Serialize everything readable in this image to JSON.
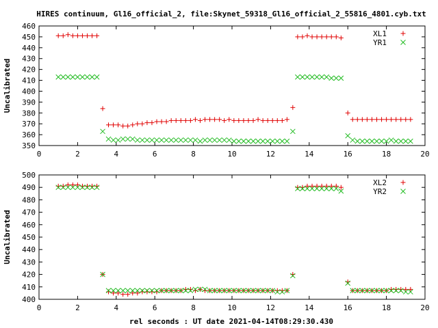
{
  "title": "HIRES continuum, Gl16_official_2, file:Skynet_59318_Gl16_official_2_55816_4801.cyb.txt",
  "xlabel": "rel seconds : UT date 2021-04-14T08:29:30.430",
  "colors": {
    "red": "#e00000",
    "green": "#22bb22",
    "frame": "#000000"
  },
  "chart_data": [
    {
      "type": "scatter",
      "title": "HIRES continuum, Gl16_official_2, file:Skynet_59318_Gl16_official_2_55816_4801.cyb.txt",
      "xlabel": "",
      "ylabel": "Uncalibrated",
      "xlim": [
        0,
        20
      ],
      "ylim": [
        350,
        460
      ],
      "xticks": [
        "0",
        "2",
        "4",
        "6",
        "8",
        "10",
        "12",
        "14",
        "16",
        "18",
        "20"
      ],
      "yticks": [
        "350",
        "360",
        "370",
        "380",
        "390",
        "400",
        "410",
        "420",
        "430",
        "440",
        "450",
        "460"
      ],
      "grid": false,
      "legend_position": "top-right",
      "series": [
        {
          "name": "XL1",
          "marker": "plus",
          "color": "#e00000",
          "x": [
            1.0,
            1.25,
            1.5,
            1.75,
            2.0,
            2.25,
            2.5,
            2.75,
            3.0,
            3.3,
            3.6,
            3.85,
            4.1,
            4.35,
            4.6,
            4.85,
            5.1,
            5.35,
            5.6,
            5.85,
            6.1,
            6.35,
            6.6,
            6.85,
            7.1,
            7.35,
            7.6,
            7.85,
            8.1,
            8.35,
            8.6,
            8.85,
            9.1,
            9.35,
            9.6,
            9.85,
            10.1,
            10.35,
            10.6,
            10.85,
            11.1,
            11.35,
            11.6,
            11.85,
            12.1,
            12.35,
            12.6,
            12.85,
            13.15,
            13.4,
            13.65,
            13.9,
            14.15,
            14.4,
            14.65,
            14.9,
            15.15,
            15.4,
            15.65,
            16.0,
            16.25,
            16.5,
            16.75,
            17.0,
            17.25,
            17.5,
            17.75,
            18.0,
            18.25,
            18.5,
            18.75,
            19.0,
            19.25
          ],
          "y": [
            451,
            451,
            452,
            451,
            451,
            451,
            451,
            451,
            451,
            384,
            369,
            369,
            369,
            368,
            368,
            369,
            370,
            370,
            371,
            371,
            372,
            372,
            372,
            373,
            373,
            373,
            373,
            373,
            374,
            373,
            374,
            374,
            374,
            374,
            373,
            374,
            373,
            373,
            373,
            373,
            373,
            374,
            373,
            373,
            373,
            373,
            373,
            374,
            385,
            450,
            450,
            451,
            450,
            450,
            450,
            450,
            450,
            450,
            449,
            380,
            374,
            374,
            374,
            374,
            374,
            374,
            374,
            374,
            374,
            374,
            374,
            374,
            374
          ]
        },
        {
          "name": "YR1",
          "marker": "cross",
          "color": "#22bb22",
          "x": [
            1.0,
            1.25,
            1.5,
            1.75,
            2.0,
            2.25,
            2.5,
            2.75,
            3.0,
            3.3,
            3.6,
            3.85,
            4.1,
            4.35,
            4.6,
            4.85,
            5.1,
            5.35,
            5.6,
            5.85,
            6.1,
            6.35,
            6.6,
            6.85,
            7.1,
            7.35,
            7.6,
            7.85,
            8.1,
            8.35,
            8.6,
            8.85,
            9.1,
            9.35,
            9.6,
            9.85,
            10.1,
            10.35,
            10.6,
            10.85,
            11.1,
            11.35,
            11.6,
            11.85,
            12.1,
            12.35,
            12.6,
            12.85,
            13.15,
            13.4,
            13.65,
            13.9,
            14.15,
            14.4,
            14.65,
            14.9,
            15.15,
            15.4,
            15.65,
            16.0,
            16.25,
            16.5,
            16.75,
            17.0,
            17.25,
            17.5,
            17.75,
            18.0,
            18.25,
            18.5,
            18.75,
            19.0,
            19.25
          ],
          "y": [
            413,
            413,
            413,
            413,
            413,
            413,
            413,
            413,
            413,
            363,
            356,
            355,
            355,
            356,
            356,
            356,
            355,
            355,
            355,
            355,
            355,
            355,
            355,
            355,
            355,
            355,
            355,
            355,
            355,
            354,
            355,
            355,
            355,
            355,
            355,
            355,
            354,
            354,
            354,
            354,
            354,
            354,
            354,
            354,
            354,
            354,
            354,
            354,
            363,
            413,
            413,
            413,
            413,
            413,
            413,
            413,
            412,
            412,
            412,
            359,
            355,
            354,
            354,
            354,
            354,
            354,
            354,
            354,
            355,
            354,
            354,
            354,
            354
          ]
        }
      ]
    },
    {
      "type": "scatter",
      "title": "",
      "xlabel": "rel seconds : UT date 2021-04-14T08:29:30.430",
      "ylabel": "Uncalibrated",
      "xlim": [
        0,
        20
      ],
      "ylim": [
        400,
        500
      ],
      "xticks": [
        "0",
        "2",
        "4",
        "6",
        "8",
        "10",
        "12",
        "14",
        "16",
        "18",
        "20"
      ],
      "yticks": [
        "400",
        "410",
        "420",
        "430",
        "440",
        "450",
        "460",
        "470",
        "480",
        "490",
        "500"
      ],
      "grid": false,
      "legend_position": "top-right",
      "series": [
        {
          "name": "XL2",
          "marker": "plus",
          "color": "#e00000",
          "x": [
            1.0,
            1.25,
            1.5,
            1.75,
            2.0,
            2.25,
            2.5,
            2.75,
            3.0,
            3.3,
            3.6,
            3.85,
            4.1,
            4.35,
            4.6,
            4.85,
            5.1,
            5.35,
            5.6,
            5.85,
            6.1,
            6.35,
            6.6,
            6.85,
            7.1,
            7.35,
            7.6,
            7.85,
            8.1,
            8.35,
            8.6,
            8.85,
            9.1,
            9.35,
            9.6,
            9.85,
            10.1,
            10.35,
            10.6,
            10.85,
            11.1,
            11.35,
            11.6,
            11.85,
            12.1,
            12.35,
            12.6,
            12.85,
            13.15,
            13.4,
            13.65,
            13.9,
            14.15,
            14.4,
            14.65,
            14.9,
            15.15,
            15.4,
            15.65,
            16.0,
            16.25,
            16.5,
            16.75,
            17.0,
            17.25,
            17.5,
            17.75,
            18.0,
            18.25,
            18.5,
            18.75,
            19.0,
            19.25
          ],
          "y": [
            491,
            491,
            492,
            492,
            492,
            491,
            491,
            491,
            491,
            420,
            406,
            405,
            405,
            404,
            404,
            405,
            405,
            406,
            406,
            406,
            406,
            407,
            407,
            407,
            407,
            407,
            408,
            408,
            407,
            408,
            407,
            407,
            407,
            407,
            407,
            407,
            407,
            407,
            407,
            407,
            407,
            407,
            407,
            407,
            407,
            407,
            407,
            407,
            420,
            490,
            490,
            491,
            491,
            491,
            491,
            491,
            491,
            491,
            490,
            414,
            407,
            407,
            407,
            407,
            407,
            407,
            407,
            407,
            408,
            408,
            408,
            408,
            408
          ]
        },
        {
          "name": "YR2",
          "marker": "cross",
          "color": "#22bb22",
          "x": [
            1.0,
            1.25,
            1.5,
            1.75,
            2.0,
            2.25,
            2.5,
            2.75,
            3.0,
            3.3,
            3.6,
            3.85,
            4.1,
            4.35,
            4.6,
            4.85,
            5.1,
            5.35,
            5.6,
            5.85,
            6.1,
            6.35,
            6.6,
            6.85,
            7.1,
            7.35,
            7.6,
            7.85,
            8.1,
            8.35,
            8.6,
            8.85,
            9.1,
            9.35,
            9.6,
            9.85,
            10.1,
            10.35,
            10.6,
            10.85,
            11.1,
            11.35,
            11.6,
            11.85,
            12.1,
            12.35,
            12.6,
            12.85,
            13.15,
            13.4,
            13.65,
            13.9,
            14.15,
            14.4,
            14.65,
            14.9,
            15.15,
            15.4,
            15.65,
            16.0,
            16.25,
            16.5,
            16.75,
            17.0,
            17.25,
            17.5,
            17.75,
            18.0,
            18.25,
            18.5,
            18.75,
            19.0,
            19.25
          ],
          "y": [
            490,
            490,
            490,
            490,
            490,
            490,
            490,
            490,
            490,
            420,
            407,
            407,
            407,
            407,
            407,
            407,
            407,
            407,
            407,
            407,
            407,
            407,
            407,
            407,
            407,
            407,
            407,
            407,
            408,
            408,
            408,
            407,
            407,
            407,
            407,
            407,
            407,
            407,
            407,
            407,
            407,
            407,
            407,
            407,
            407,
            406,
            406,
            407,
            419,
            489,
            489,
            489,
            489,
            489,
            489,
            489,
            489,
            489,
            487,
            413,
            407,
            407,
            407,
            407,
            407,
            407,
            407,
            407,
            407,
            407,
            407,
            406,
            406
          ]
        }
      ]
    }
  ]
}
